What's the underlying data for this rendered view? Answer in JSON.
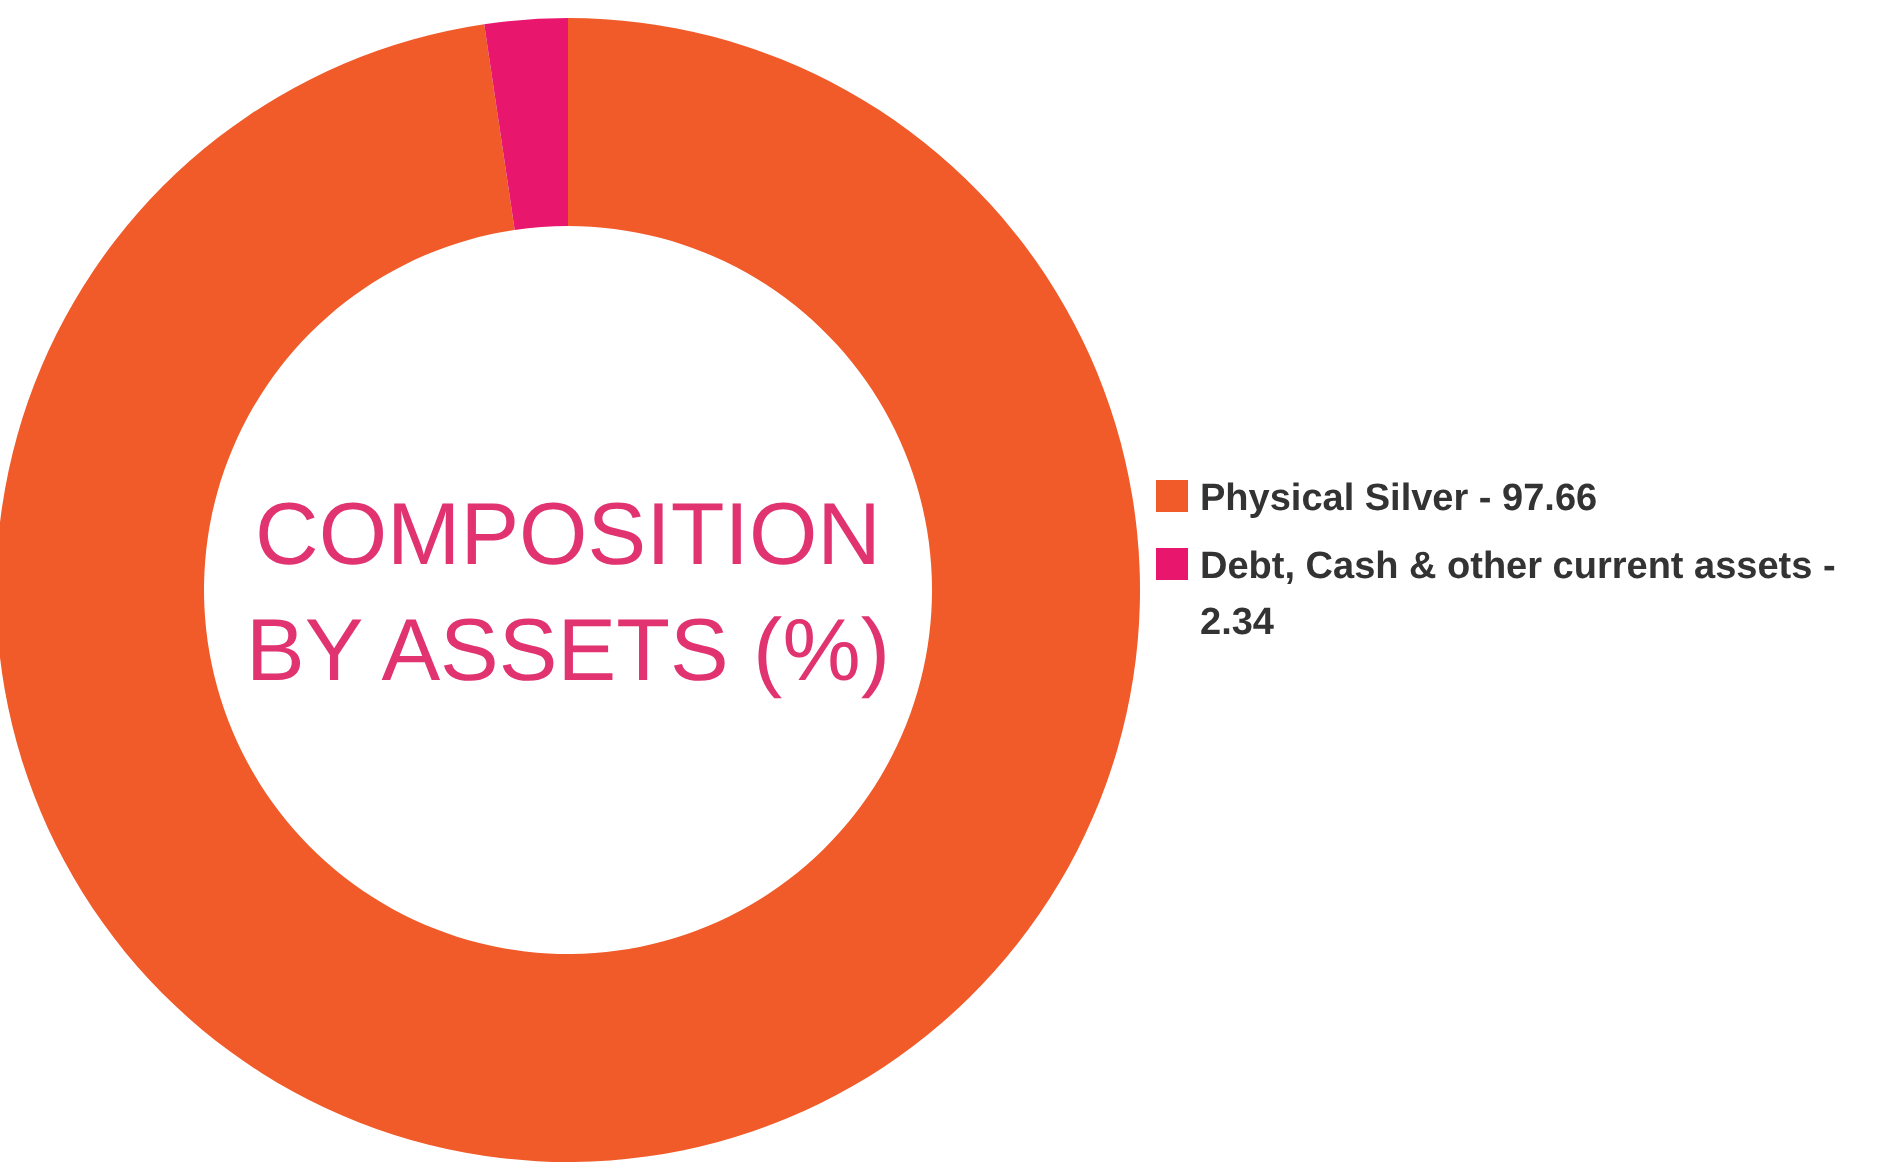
{
  "chart_data": {
    "type": "donut",
    "title": "COMPOSITION BY ASSETS (%)",
    "categories": [
      "Physical Silver - 97.66",
      "Debt, Cash & other current assets - 2.34"
    ],
    "values": [
      97.66,
      2.34
    ],
    "colors": [
      "#f15a29",
      "#e8176d"
    ],
    "legend": "right"
  }
}
